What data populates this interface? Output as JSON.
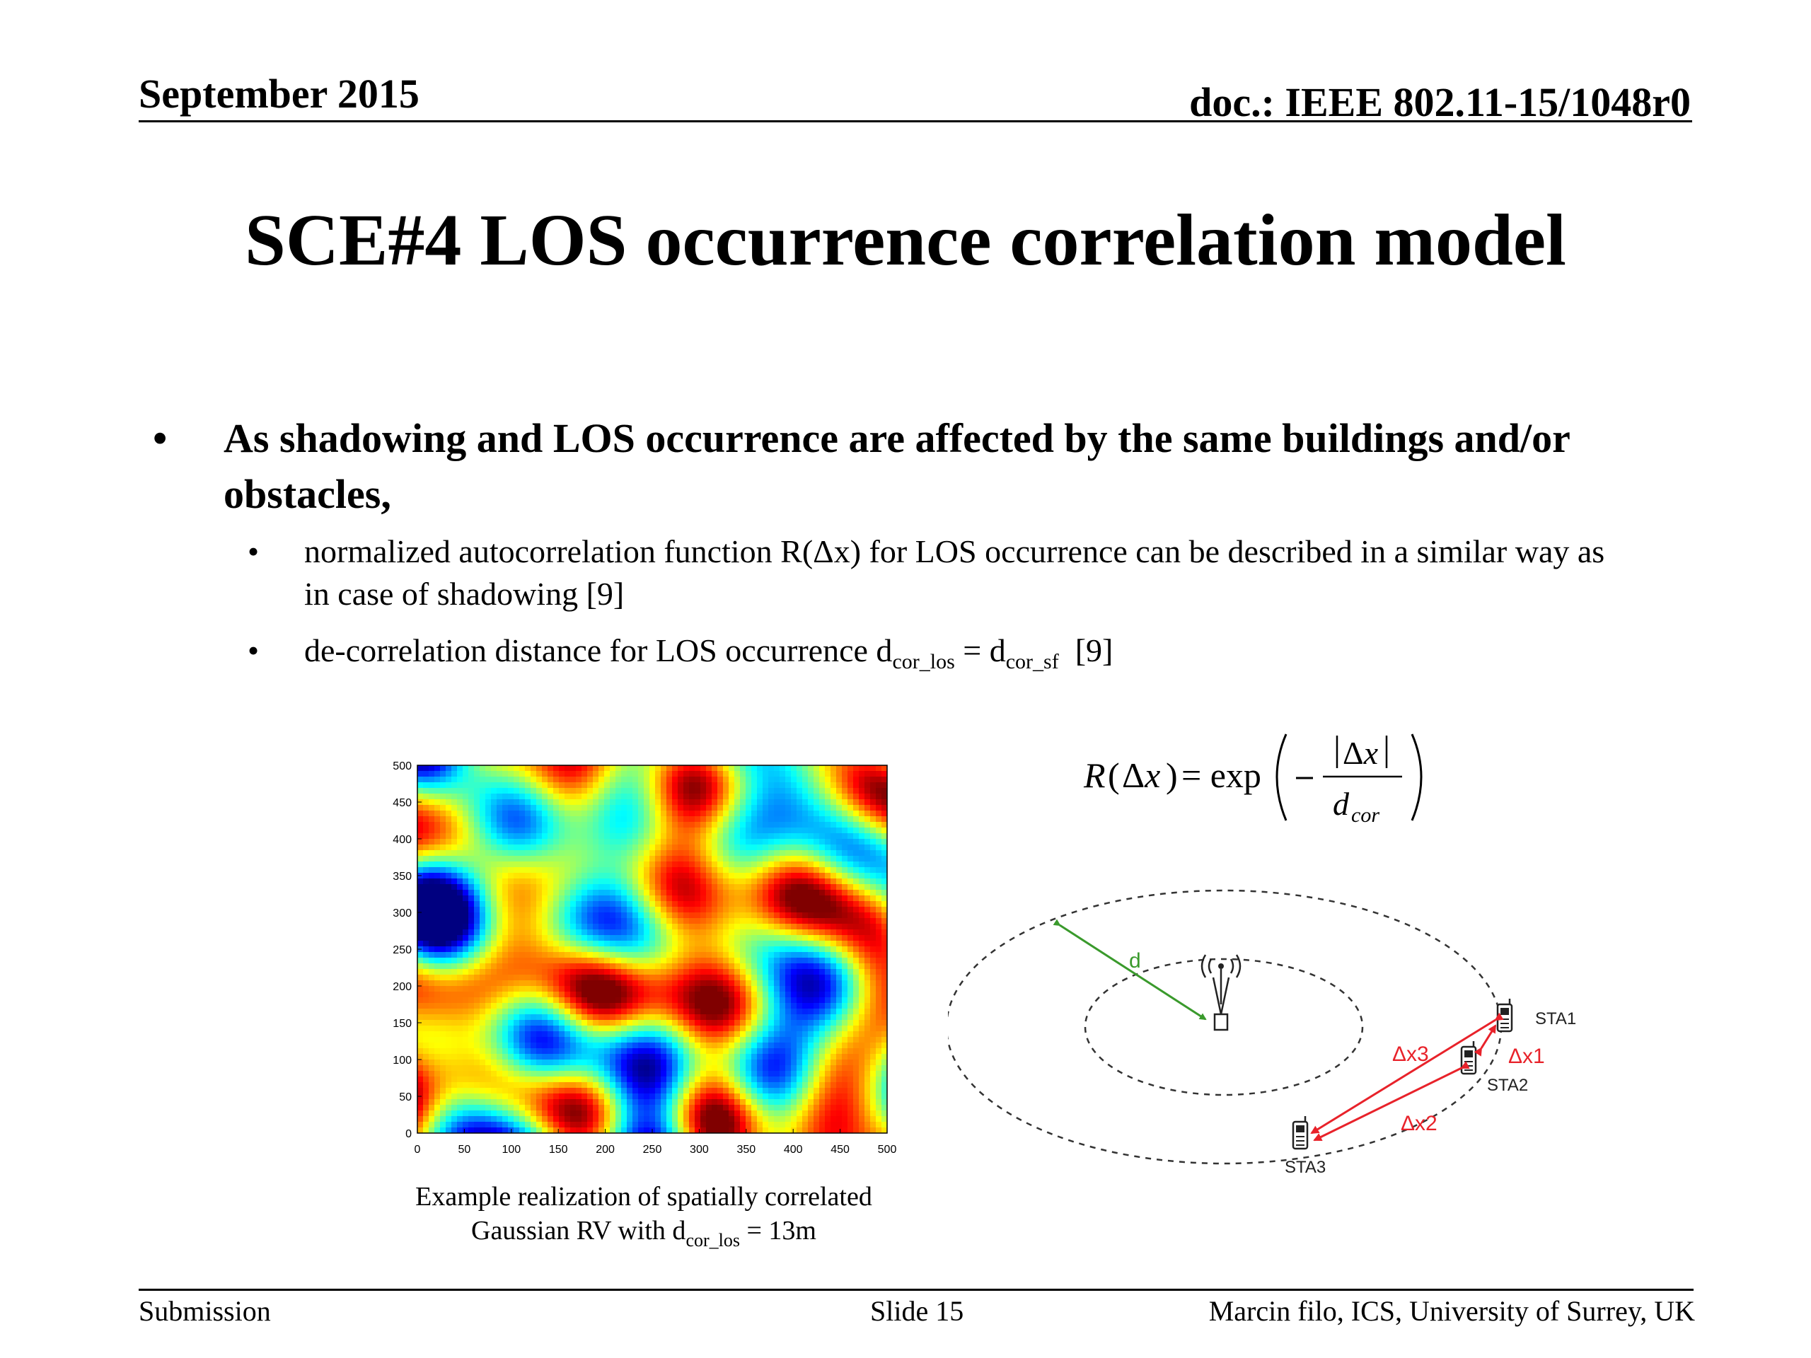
{
  "header": {
    "date": "September 2015",
    "doc": "doc.: IEEE 802.11-15/1048r0"
  },
  "title": "SCE#4 LOS occurrence correlation model",
  "bullets": {
    "main": {
      "marker": "•",
      "text": "As shadowing and LOS occurrence are affected by the same buildings and/or obstacles,"
    },
    "sub1": {
      "marker": "•",
      "text": "normalized autocorrelation function R(Δx) for LOS occurrence can be described in a similar way as in case of shadowing [9]"
    },
    "sub2": {
      "marker": "•",
      "prefix": "de-correlation distance for LOS occurrence d",
      "sub_a": "cor_los",
      "mid": " = d",
      "sub_b": "cor_sf",
      "suffix": "  [9]"
    }
  },
  "chart_data": {
    "type": "heatmap",
    "title": "",
    "xlabel": "",
    "ylabel": "",
    "xlim": [
      0,
      500
    ],
    "ylim": [
      0,
      500
    ],
    "xticks": [
      "0",
      "50",
      "100",
      "150",
      "200",
      "250",
      "300",
      "350",
      "400",
      "450",
      "500"
    ],
    "yticks": [
      "0",
      "50",
      "100",
      "150",
      "200",
      "250",
      "300",
      "350",
      "400",
      "450",
      "500"
    ],
    "colormap": "jet",
    "grid": false
  },
  "caption": {
    "line1": "Example realization of spatially correlated",
    "line2_prefix": "Gaussian RV with d",
    "line2_sub": "cor_los",
    "line2_suffix": " = 13m"
  },
  "formula": {
    "lhs": "R(Δx) = exp(−|Δx| / d",
    "sub": "cor",
    "rhs": ")"
  },
  "diagram": {
    "distance_label": "d",
    "stations": [
      "STA1",
      "STA2",
      "STA3"
    ],
    "deltas": [
      "Δx1",
      "Δx2",
      "Δx3"
    ],
    "colors": {
      "distance": "#3a9a2c",
      "delta": "#e8222a",
      "ring": "#333333"
    }
  },
  "footer": {
    "left": "Submission",
    "center": "Slide 15",
    "right": "Marcin filo, ICS, University of Surrey, UK"
  }
}
